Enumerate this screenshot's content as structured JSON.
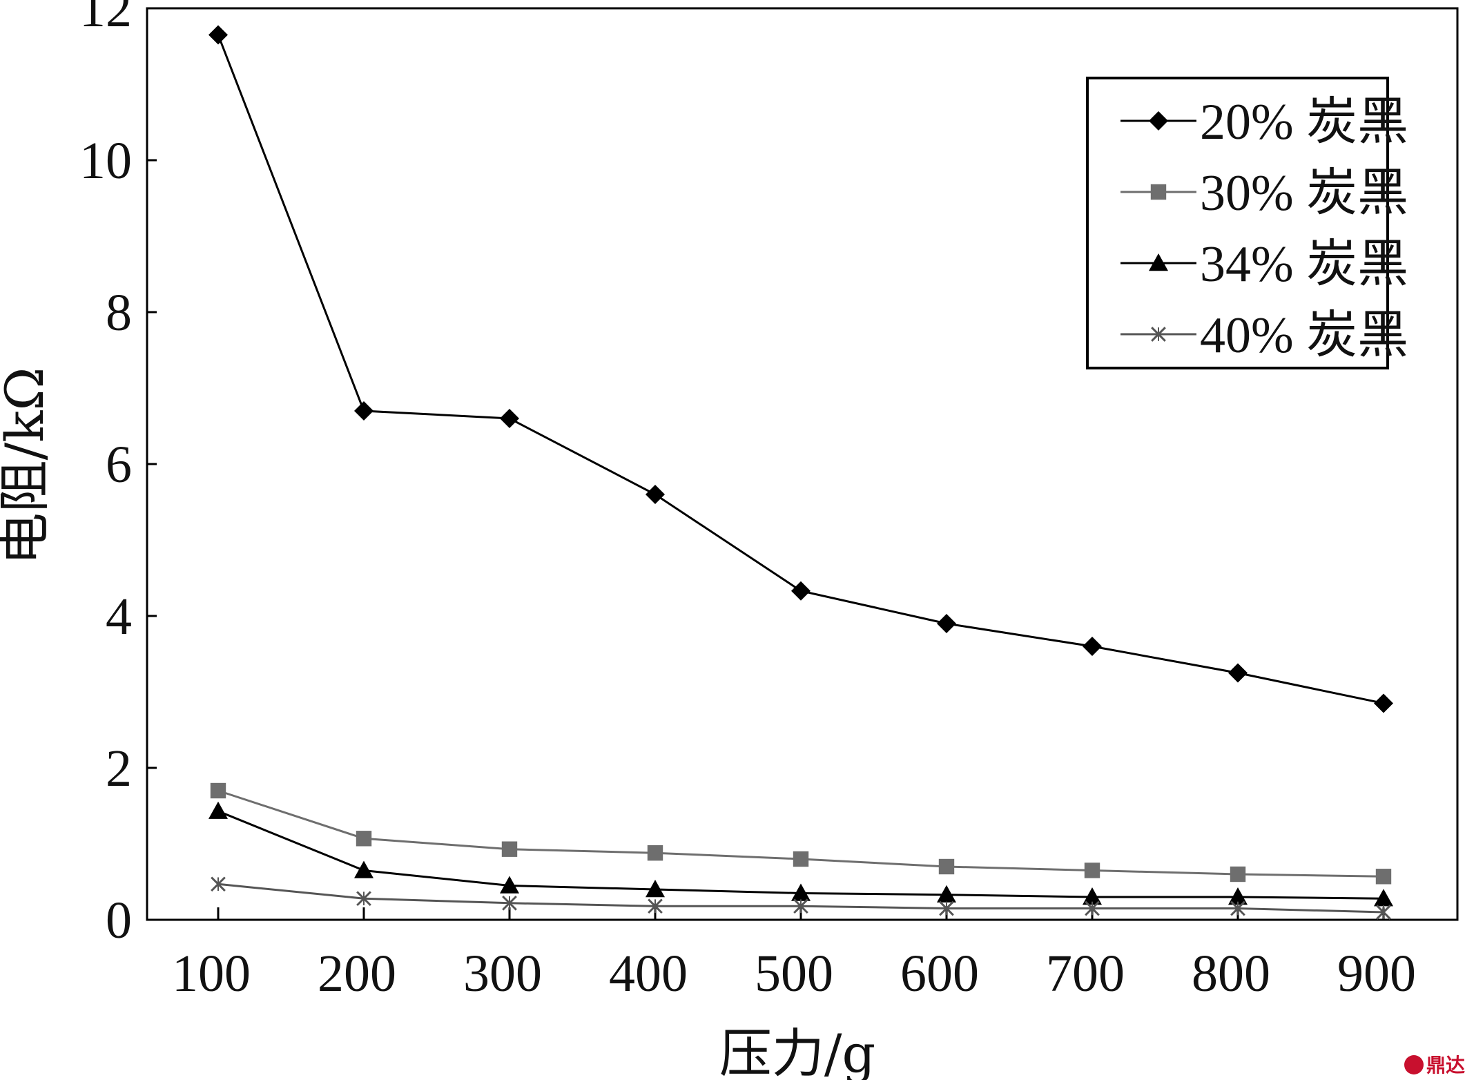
{
  "chart_data": {
    "type": "line",
    "xlabel": "压力/g",
    "ylabel": "电阻/kΩ",
    "x": [
      100,
      200,
      300,
      400,
      500,
      600,
      700,
      800,
      900
    ],
    "x_tick_labels": [
      "100",
      "200",
      "300",
      "400",
      "500",
      "600",
      "700",
      "800",
      "900"
    ],
    "ylim": [
      0,
      12
    ],
    "y_ticks": [
      0,
      2,
      4,
      6,
      8,
      10,
      12
    ],
    "y_tick_labels": [
      "0",
      "2",
      "4",
      "6",
      "8",
      "10",
      "12"
    ],
    "grid": false,
    "legend_position": "top-right",
    "series": [
      {
        "name": "20% 炭黑",
        "marker": "diamond",
        "color": "#000000",
        "values": [
          11.65,
          6.7,
          6.6,
          5.6,
          4.33,
          3.9,
          3.6,
          3.25,
          2.85
        ]
      },
      {
        "name": "30% 炭黑",
        "marker": "square",
        "color": "#6e6e6e",
        "values": [
          1.7,
          1.07,
          0.93,
          0.88,
          0.8,
          0.7,
          0.65,
          0.6,
          0.57
        ]
      },
      {
        "name": "34% 炭黑",
        "marker": "triangle",
        "color": "#000000",
        "values": [
          1.43,
          0.65,
          0.45,
          0.4,
          0.35,
          0.33,
          0.3,
          0.3,
          0.28
        ]
      },
      {
        "name": "40% 炭黑",
        "marker": "cross",
        "color": "#555555",
        "values": [
          0.47,
          0.28,
          0.22,
          0.18,
          0.18,
          0.15,
          0.15,
          0.15,
          0.1
        ]
      }
    ]
  },
  "watermark": {
    "text": "鼎达信",
    "color": "#c8102e"
  }
}
